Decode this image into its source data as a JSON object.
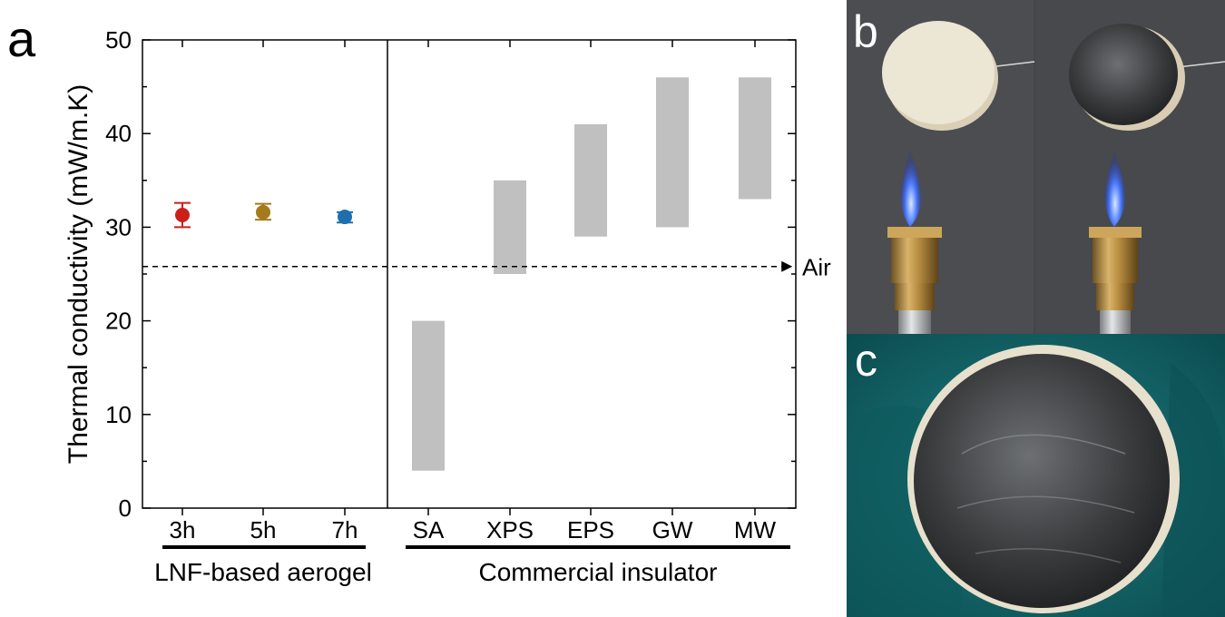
{
  "chart_data": {
    "type": "range-bar-with-errorbars",
    "panel_label": "a",
    "ylabel": "Thermal conductivity (mW/m.K)",
    "ylim": [
      0,
      50
    ],
    "yticks": [
      "0",
      "10",
      "20",
      "30",
      "40",
      "50"
    ],
    "categories": [
      "3h",
      "5h",
      "7h",
      "SA",
      "XPS",
      "EPS",
      "GW",
      "MW"
    ],
    "aerogel_points": [
      {
        "label": "3h",
        "value": 31.3,
        "err_low": 30.0,
        "err_high": 32.6,
        "color": "#cc1f1a"
      },
      {
        "label": "5h",
        "value": 31.6,
        "err_low": 30.8,
        "err_high": 32.5,
        "color": "#a47a1c"
      },
      {
        "label": "7h",
        "value": 31.1,
        "err_low": 30.5,
        "err_high": 31.6,
        "color": "#1f6fb0"
      }
    ],
    "insulator_ranges": [
      {
        "label": "SA",
        "low": 4,
        "high": 20
      },
      {
        "label": "XPS",
        "low": 25,
        "high": 35
      },
      {
        "label": "EPS",
        "low": 29,
        "high": 41
      },
      {
        "label": "GW",
        "low": 30,
        "high": 46
      },
      {
        "label": "MW",
        "low": 33,
        "high": 46
      }
    ],
    "air_line": {
      "value": 25.8,
      "label": "Air"
    },
    "groups": [
      "LNF-based aerogel",
      "Commercial insulator"
    ]
  },
  "colors": {
    "range_fill": "#c0c0c0",
    "axis": "#000000"
  },
  "photos": {
    "b_label": "b",
    "c_label": "c"
  }
}
